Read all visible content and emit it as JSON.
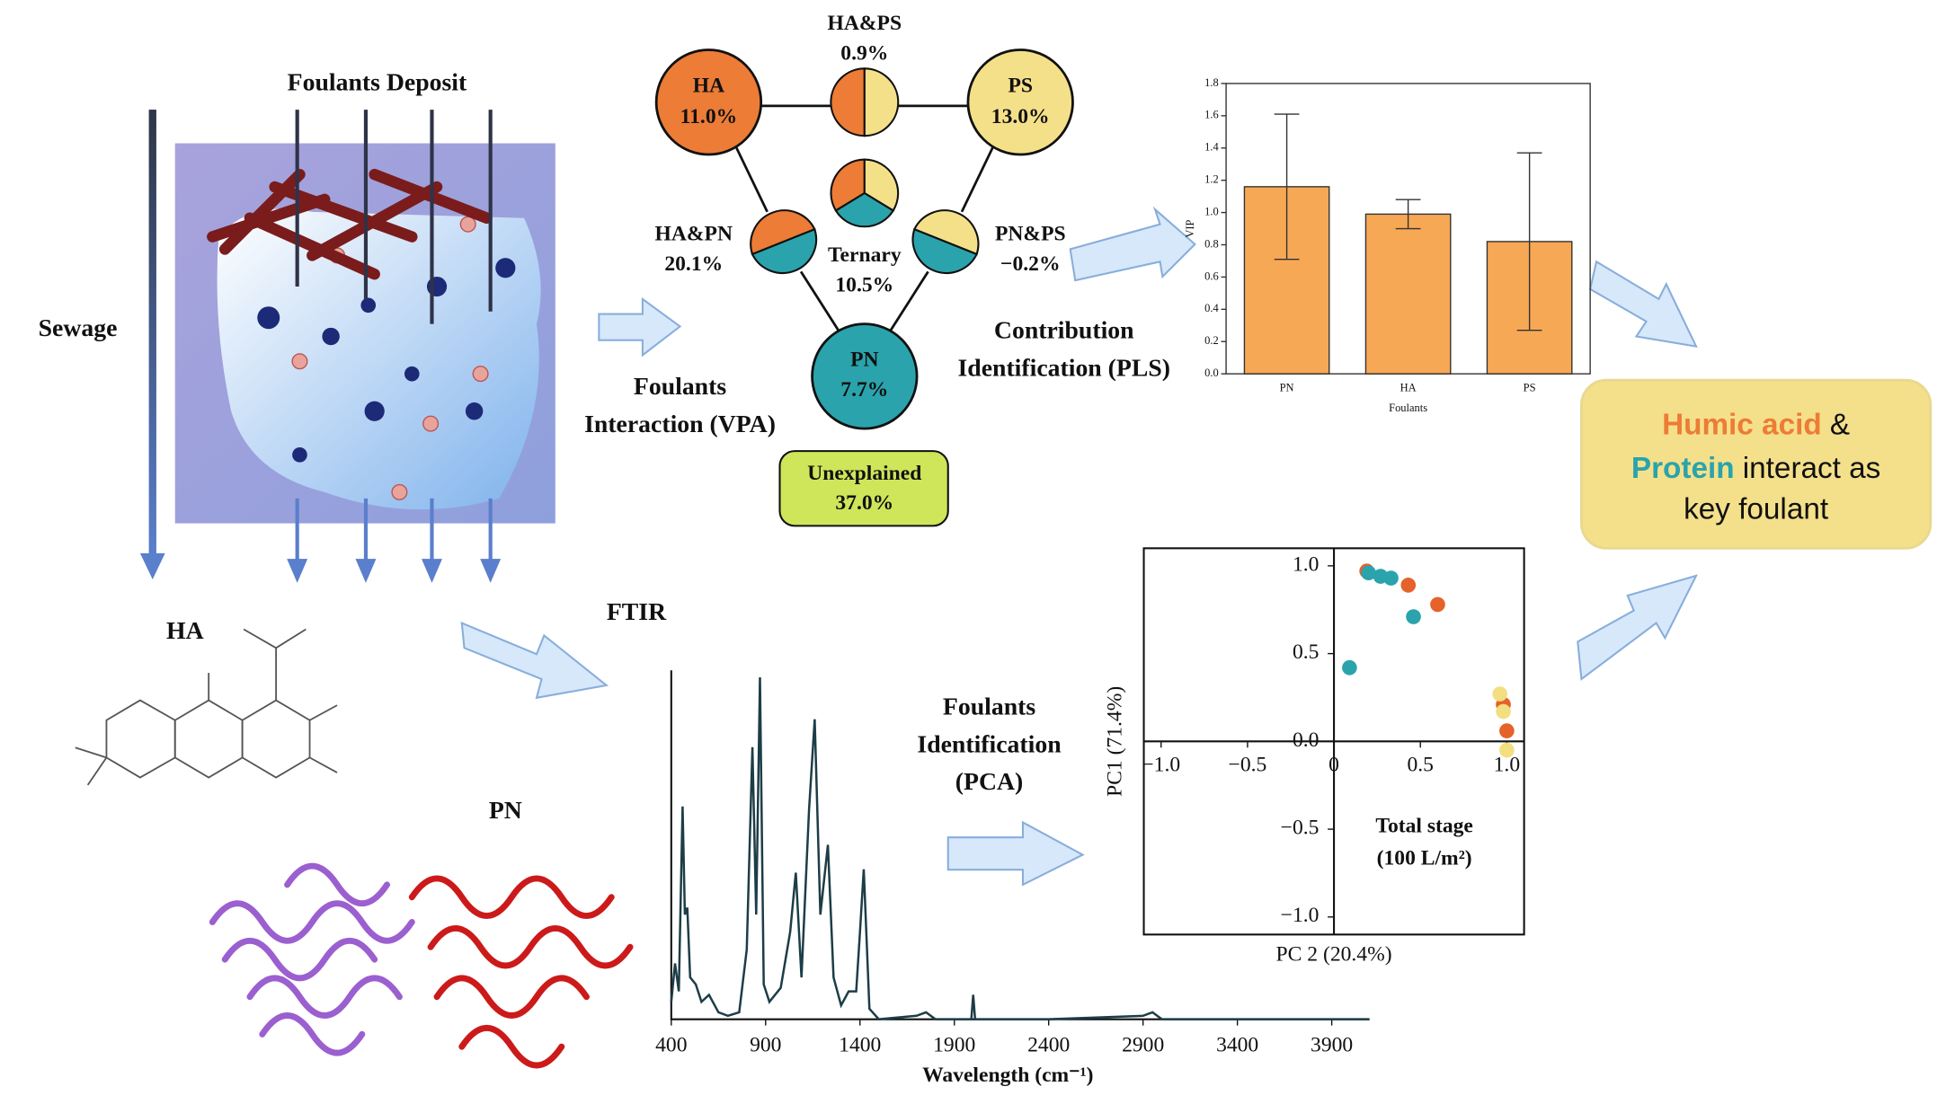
{
  "labels": {
    "foulants_deposit": "Foulants Deposit",
    "sewage": "Sewage",
    "ha": "HA",
    "pn": "PN",
    "ftir": "FTIR",
    "interaction": [
      "Foulants",
      "Interaction (VPA)"
    ],
    "contribution": [
      "Contribution",
      "Identification (PLS)"
    ],
    "identification": [
      "Foulants",
      "Identification",
      "(PCA)"
    ]
  },
  "vpa": {
    "nodes": [
      {
        "label": "HA",
        "value": "11.0%"
      },
      {
        "label": "PS",
        "value": "13.0%"
      },
      {
        "label": "PN",
        "value": "7.7%"
      },
      {
        "label": "HA&PS",
        "value": "0.9%"
      },
      {
        "label": "HA&PN",
        "value": "20.1%"
      },
      {
        "label": "PN&PS",
        "value": "−0.2%"
      },
      {
        "label": "Ternary",
        "value": "10.5%"
      },
      {
        "label": "Unexplained",
        "value": "37.0%"
      }
    ]
  },
  "conclusion": {
    "humic": "Humic acid",
    "amp": " &",
    "protein": "Protein",
    "rest1": " interact as",
    "rest2": "key foulant"
  },
  "chart_data": [
    {
      "type": "bar",
      "xlabel": "Foulants",
      "ylabel": "VIP",
      "categories": [
        "PN",
        "HA",
        "PS"
      ],
      "values": [
        1.16,
        0.99,
        0.82
      ],
      "errors": [
        0.45,
        0.09,
        0.55
      ],
      "color": "#f7a855",
      "ylim": [
        0,
        1.8
      ],
      "yticks": [
        {
          "value": 0,
          "label": "0.0"
        },
        0.2,
        0.4,
        0.6,
        0.8,
        {
          "value": 1,
          "label": "1.0"
        },
        1.2,
        1.4,
        1.6,
        1.8
      ]
    },
    {
      "type": "scatter",
      "xlabel": "PC 2 (20.4%)",
      "ylabel": "PC1 (71.4%)",
      "annotation": [
        "Total stage",
        "(100 L/m²)"
      ],
      "xlim": [
        -1.1,
        1.1
      ],
      "ylim": [
        -1.1,
        1.1
      ],
      "xticks": [
        {
          "value": -1,
          "label": "−1.0"
        },
        {
          "value": -0.5,
          "label": "−0.5"
        },
        0,
        0.5,
        {
          "value": 1,
          "label": "1.0"
        }
      ],
      "yticks": [
        {
          "value": -1,
          "label": "−1.0"
        },
        {
          "value": -0.5,
          "label": "−0.5"
        },
        {
          "value": 0,
          "label": "0.0"
        },
        0.5,
        {
          "value": 1,
          "label": "1.0"
        }
      ],
      "series": [
        {
          "color": "#e5622a",
          "x": [
            0.19,
            0.43,
            0.6,
            0.98,
            1.0
          ],
          "values": [
            0.97,
            0.89,
            0.78,
            0.21,
            0.06
          ]
        },
        {
          "color": "#2ba3ad",
          "x": [
            0.2,
            0.27,
            0.33,
            0.46,
            0.09
          ],
          "values": [
            0.96,
            0.94,
            0.93,
            0.71,
            0.42
          ]
        },
        {
          "color": "#f3df7f",
          "x": [
            0.96,
            0.98,
            1.0
          ],
          "values": [
            0.27,
            0.17,
            -0.05
          ]
        }
      ]
    },
    {
      "type": "line",
      "xlabel": "Wavelength (cm⁻¹)",
      "color": "#1d3d47",
      "xlim": [
        400,
        4100
      ],
      "ylim": [
        0,
        1
      ],
      "xticks": [
        400,
        900,
        1400,
        1900,
        2400,
        2900,
        3400,
        3900
      ],
      "x": [
        400,
        420,
        440,
        460,
        472,
        485,
        500,
        530,
        560,
        600,
        650,
        700,
        760,
        800,
        830,
        850,
        870,
        890,
        920,
        980,
        1030,
        1060,
        1090,
        1130,
        1160,
        1190,
        1230,
        1260,
        1300,
        1340,
        1380,
        1400,
        1420,
        1450,
        1500,
        1700,
        1750,
        1800,
        1990,
        2000,
        2010,
        2400,
        2900,
        2950,
        3000,
        3400,
        4000,
        4100
      ],
      "values": [
        0.05,
        0.16,
        0.08,
        0.61,
        0.3,
        0.32,
        0.12,
        0.1,
        0.05,
        0.07,
        0.02,
        0.01,
        0.02,
        0.2,
        0.78,
        0.3,
        0.98,
        0.1,
        0.05,
        0.09,
        0.25,
        0.42,
        0.12,
        0.6,
        0.86,
        0.3,
        0.5,
        0.12,
        0.04,
        0.08,
        0.08,
        0.25,
        0.43,
        0.03,
        0.0,
        0.01,
        0.02,
        0.0,
        0.0,
        0.07,
        0.0,
        0.0,
        0.01,
        0.02,
        0.0,
        0.0,
        0.0,
        0.0
      ]
    }
  ]
}
